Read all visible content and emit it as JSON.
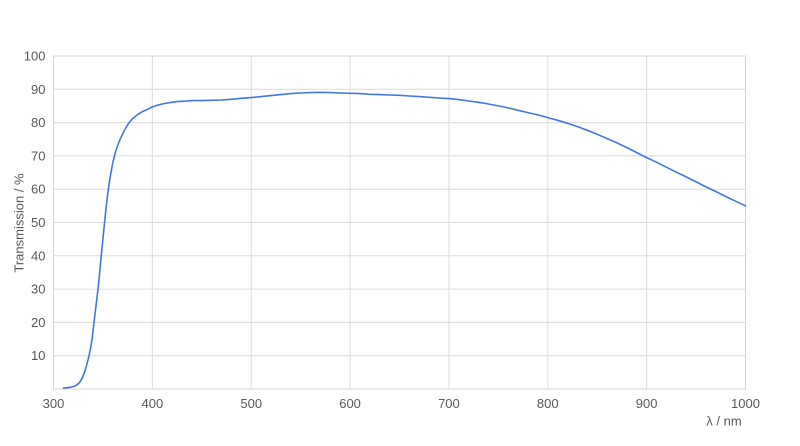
{
  "chart_data": {
    "type": "line",
    "title": "",
    "xlabel": "λ / nm",
    "ylabel": "Transmission / %",
    "xlim": [
      300,
      1000
    ],
    "ylim": [
      0,
      100
    ],
    "x_ticks": [
      300,
      400,
      500,
      600,
      700,
      800,
      900,
      1000
    ],
    "y_ticks": [
      10,
      20,
      30,
      40,
      50,
      60,
      70,
      80,
      90,
      100
    ],
    "grid": true,
    "legend_position": "none",
    "line_color": "#4277e0",
    "grid_color": "#dcdcdc",
    "border_color": "#d4d4d4",
    "tick_label_color": "#595959",
    "background_color": "#ffffff",
    "series": [
      {
        "name": "Transmission",
        "points": [
          [
            310,
            0.3
          ],
          [
            314,
            0.4
          ],
          [
            318,
            0.6
          ],
          [
            322,
            0.9
          ],
          [
            326,
            1.8
          ],
          [
            329,
            3.2
          ],
          [
            332,
            5.5
          ],
          [
            335,
            8.8
          ],
          [
            337,
            11.5
          ],
          [
            339,
            15
          ],
          [
            341,
            20
          ],
          [
            343,
            25
          ],
          [
            345,
            30
          ],
          [
            347,
            36
          ],
          [
            349,
            42
          ],
          [
            351,
            48
          ],
          [
            353,
            54
          ],
          [
            355,
            59
          ],
          [
            357,
            63
          ],
          [
            360,
            68
          ],
          [
            363,
            71.5
          ],
          [
            366,
            74
          ],
          [
            369,
            76
          ],
          [
            372,
            77.8
          ],
          [
            376,
            79.8
          ],
          [
            380,
            81.2
          ],
          [
            385,
            82.4
          ],
          [
            390,
            83.3
          ],
          [
            395,
            84
          ],
          [
            400,
            84.7
          ],
          [
            405,
            85.2
          ],
          [
            410,
            85.6
          ],
          [
            415,
            85.9
          ],
          [
            420,
            86.1
          ],
          [
            425,
            86.3
          ],
          [
            430,
            86.4
          ],
          [
            435,
            86.5
          ],
          [
            440,
            86.6
          ],
          [
            450,
            86.6
          ],
          [
            460,
            86.7
          ],
          [
            470,
            86.8
          ],
          [
            480,
            87.0
          ],
          [
            490,
            87.3
          ],
          [
            500,
            87.5
          ],
          [
            510,
            87.8
          ],
          [
            520,
            88.1
          ],
          [
            530,
            88.4
          ],
          [
            540,
            88.7
          ],
          [
            550,
            88.9
          ],
          [
            560,
            89.0
          ],
          [
            570,
            89.1
          ],
          [
            580,
            89.0
          ],
          [
            590,
            88.9
          ],
          [
            600,
            88.8
          ],
          [
            610,
            88.7
          ],
          [
            620,
            88.5
          ],
          [
            630,
            88.4
          ],
          [
            640,
            88.3
          ],
          [
            650,
            88.2
          ],
          [
            660,
            88.0
          ],
          [
            670,
            87.8
          ],
          [
            680,
            87.6
          ],
          [
            690,
            87.4
          ],
          [
            700,
            87.2
          ],
          [
            710,
            86.9
          ],
          [
            720,
            86.5
          ],
          [
            730,
            86.1
          ],
          [
            740,
            85.6
          ],
          [
            750,
            85.0
          ],
          [
            760,
            84.4
          ],
          [
            770,
            83.7
          ],
          [
            780,
            83.0
          ],
          [
            790,
            82.3
          ],
          [
            800,
            81.5
          ],
          [
            810,
            80.7
          ],
          [
            820,
            79.8
          ],
          [
            830,
            78.8
          ],
          [
            840,
            77.7
          ],
          [
            850,
            76.5
          ],
          [
            860,
            75.2
          ],
          [
            870,
            73.9
          ],
          [
            880,
            72.5
          ],
          [
            890,
            71.0
          ],
          [
            900,
            69.5
          ],
          [
            910,
            68.1
          ],
          [
            920,
            66.6
          ],
          [
            930,
            65.1
          ],
          [
            940,
            63.7
          ],
          [
            950,
            62.2
          ],
          [
            960,
            60.7
          ],
          [
            970,
            59.3
          ],
          [
            980,
            57.8
          ],
          [
            990,
            56.4
          ],
          [
            1000,
            55.0
          ]
        ]
      }
    ]
  }
}
